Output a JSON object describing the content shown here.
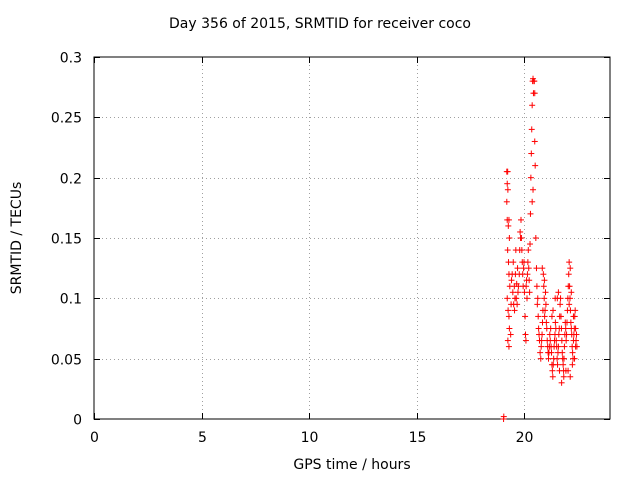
{
  "chart_data": {
    "type": "scatter",
    "title": "Day 356 of 2015, SRMTID for receiver coco",
    "xlabel": "GPS time / hours",
    "ylabel": "SRMTID / TECUs",
    "xlim": [
      0,
      24.0
    ],
    "ylim": [
      0,
      0.3
    ],
    "xticks": [
      0,
      5,
      10,
      15,
      20
    ],
    "yticks": [
      0,
      0.05,
      0.1,
      0.15,
      0.2,
      0.25,
      0.3
    ],
    "grid": true,
    "marker": "+",
    "marker_color": "#ff0000",
    "series": [
      {
        "name": "SRMTID",
        "points": [
          [
            19.05,
            0.0
          ],
          [
            19.06,
            0.002
          ],
          [
            19.2,
            0.205
          ],
          [
            19.22,
            0.195
          ],
          [
            19.24,
            0.205
          ],
          [
            19.25,
            0.19
          ],
          [
            19.2,
            0.18
          ],
          [
            19.22,
            0.165
          ],
          [
            19.27,
            0.16
          ],
          [
            19.3,
            0.165
          ],
          [
            19.32,
            0.15
          ],
          [
            19.24,
            0.14
          ],
          [
            19.28,
            0.13
          ],
          [
            19.3,
            0.12
          ],
          [
            19.34,
            0.11
          ],
          [
            19.22,
            0.1
          ],
          [
            19.26,
            0.09
          ],
          [
            19.3,
            0.085
          ],
          [
            19.32,
            0.075
          ],
          [
            19.25,
            0.065
          ],
          [
            19.3,
            0.06
          ],
          [
            19.38,
            0.07
          ],
          [
            19.4,
            0.095
          ],
          [
            19.42,
            0.115
          ],
          [
            19.45,
            0.12
          ],
          [
            19.5,
            0.13
          ],
          [
            19.55,
            0.11
          ],
          [
            19.58,
            0.1
          ],
          [
            19.6,
            0.12
          ],
          [
            19.62,
            0.14
          ],
          [
            19.48,
            0.105
          ],
          [
            19.52,
            0.095
          ],
          [
            19.56,
            0.09
          ],
          [
            19.64,
            0.1
          ],
          [
            19.66,
            0.112
          ],
          [
            19.7,
            0.125
          ],
          [
            19.72,
            0.105
          ],
          [
            19.74,
            0.11
          ],
          [
            19.68,
            0.095
          ],
          [
            19.78,
            0.12
          ],
          [
            19.8,
            0.14
          ],
          [
            19.82,
            0.155
          ],
          [
            19.84,
            0.15
          ],
          [
            19.86,
            0.165
          ],
          [
            19.88,
            0.15
          ],
          [
            19.9,
            0.14
          ],
          [
            19.92,
            0.13
          ],
          [
            19.94,
            0.12
          ],
          [
            19.96,
            0.11
          ],
          [
            19.98,
            0.125
          ],
          [
            20.0,
            0.13
          ],
          [
            20.02,
            0.105
          ],
          [
            20.05,
            0.085
          ],
          [
            20.07,
            0.07
          ],
          [
            20.09,
            0.065
          ],
          [
            20.1,
            0.11
          ],
          [
            20.12,
            0.115
          ],
          [
            20.14,
            0.1
          ],
          [
            20.16,
            0.12
          ],
          [
            20.18,
            0.13
          ],
          [
            20.2,
            0.14
          ],
          [
            20.22,
            0.125
          ],
          [
            20.24,
            0.115
          ],
          [
            20.26,
            0.105
          ],
          [
            20.28,
            0.145
          ],
          [
            20.3,
            0.17
          ],
          [
            20.32,
            0.2
          ],
          [
            20.34,
            0.22
          ],
          [
            20.36,
            0.24
          ],
          [
            20.38,
            0.26
          ],
          [
            20.4,
            0.28
          ],
          [
            20.42,
            0.282
          ],
          [
            20.44,
            0.27
          ],
          [
            20.46,
            0.28
          ],
          [
            20.48,
            0.28
          ],
          [
            20.5,
            0.27
          ],
          [
            20.38,
            0.18
          ],
          [
            20.42,
            0.19
          ],
          [
            20.5,
            0.23
          ],
          [
            20.52,
            0.21
          ],
          [
            20.55,
            0.15
          ],
          [
            20.58,
            0.125
          ],
          [
            20.6,
            0.11
          ],
          [
            20.62,
            0.095
          ],
          [
            20.64,
            0.1
          ],
          [
            20.66,
            0.085
          ],
          [
            20.68,
            0.075
          ],
          [
            20.7,
            0.07
          ],
          [
            20.72,
            0.065
          ],
          [
            20.75,
            0.055
          ],
          [
            20.78,
            0.05
          ],
          [
            20.8,
            0.06
          ],
          [
            20.82,
            0.065
          ],
          [
            20.84,
            0.07
          ],
          [
            20.86,
            0.08
          ],
          [
            20.88,
            0.09
          ],
          [
            20.9,
            0.12
          ],
          [
            20.92,
            0.11
          ],
          [
            20.94,
            0.1
          ],
          [
            20.96,
            0.085
          ],
          [
            20.98,
            0.09
          ],
          [
            21.0,
            0.105
          ],
          [
            21.02,
            0.095
          ],
          [
            21.04,
            0.08
          ],
          [
            21.06,
            0.075
          ],
          [
            21.08,
            0.065
          ],
          [
            21.1,
            0.06
          ],
          [
            21.12,
            0.055
          ],
          [
            21.14,
            0.05
          ],
          [
            21.16,
            0.055
          ],
          [
            21.18,
            0.06
          ],
          [
            21.2,
            0.07
          ],
          [
            21.22,
            0.065
          ],
          [
            21.24,
            0.075
          ],
          [
            21.26,
            0.06
          ],
          [
            21.28,
            0.055
          ],
          [
            21.3,
            0.045
          ],
          [
            21.32,
            0.04
          ],
          [
            21.34,
            0.035
          ],
          [
            21.36,
            0.045
          ],
          [
            21.38,
            0.05
          ],
          [
            21.4,
            0.06
          ],
          [
            21.42,
            0.065
          ],
          [
            21.44,
            0.07
          ],
          [
            21.46,
            0.08
          ],
          [
            21.48,
            0.075
          ],
          [
            21.5,
            0.065
          ],
          [
            21.52,
            0.06
          ],
          [
            21.54,
            0.05
          ],
          [
            21.56,
            0.045
          ],
          [
            21.58,
            0.055
          ],
          [
            21.6,
            0.06
          ],
          [
            21.62,
            0.07
          ],
          [
            21.64,
            0.075
          ],
          [
            21.66,
            0.085
          ],
          [
            21.68,
            0.095
          ],
          [
            21.7,
            0.1
          ],
          [
            21.72,
            0.085
          ],
          [
            21.74,
            0.075
          ],
          [
            21.76,
            0.065
          ],
          [
            21.78,
            0.055
          ],
          [
            21.8,
            0.05
          ],
          [
            21.82,
            0.045
          ],
          [
            21.84,
            0.04
          ],
          [
            21.86,
            0.05
          ],
          [
            21.88,
            0.06
          ],
          [
            21.9,
            0.07
          ],
          [
            21.92,
            0.08
          ],
          [
            21.94,
            0.075
          ],
          [
            21.96,
            0.065
          ],
          [
            21.98,
            0.07
          ],
          [
            22.0,
            0.08
          ],
          [
            22.02,
            0.09
          ],
          [
            22.04,
            0.1
          ],
          [
            22.06,
            0.11
          ],
          [
            22.08,
            0.12
          ],
          [
            22.1,
            0.13
          ],
          [
            22.12,
            0.11
          ],
          [
            22.14,
            0.1
          ],
          [
            22.16,
            0.09
          ],
          [
            22.18,
            0.08
          ],
          [
            22.2,
            0.075
          ],
          [
            22.22,
            0.07
          ],
          [
            22.24,
            0.06
          ],
          [
            22.26,
            0.055
          ],
          [
            22.28,
            0.05
          ],
          [
            22.3,
            0.065
          ],
          [
            22.32,
            0.07
          ],
          [
            22.34,
            0.075
          ],
          [
            22.36,
            0.085
          ],
          [
            22.38,
            0.09
          ],
          [
            22.4,
            0.075
          ],
          [
            22.42,
            0.065
          ],
          [
            22.44,
            0.07
          ],
          [
            22.46,
            0.06
          ],
          [
            21.3,
            0.085
          ],
          [
            21.35,
            0.09
          ],
          [
            21.55,
            0.1
          ],
          [
            21.6,
            0.105
          ],
          [
            21.45,
            0.1
          ],
          [
            20.85,
            0.125
          ],
          [
            20.95,
            0.115
          ],
          [
            22.15,
            0.125
          ],
          [
            22.1,
            0.095
          ],
          [
            22.2,
            0.105
          ],
          [
            22.3,
            0.085
          ],
          [
            22.05,
            0.04
          ],
          [
            22.15,
            0.035
          ],
          [
            21.95,
            0.04
          ],
          [
            21.75,
            0.03
          ],
          [
            21.65,
            0.04
          ],
          [
            21.85,
            0.035
          ],
          [
            22.25,
            0.045
          ],
          [
            22.35,
            0.05
          ],
          [
            22.4,
            0.06
          ]
        ]
      }
    ]
  }
}
